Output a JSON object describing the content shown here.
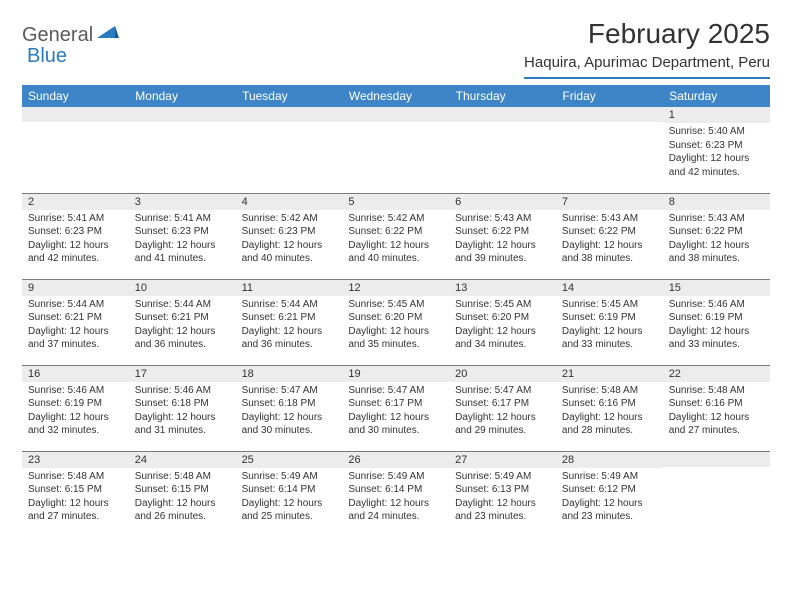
{
  "brand": {
    "part1": "General",
    "part2": "Blue"
  },
  "title": "February 2025",
  "location": "Haquira, Apurimac Department, Peru",
  "colors": {
    "header_bg": "#3d85c6",
    "accent": "#2b7bbf",
    "daynum_bg": "#ececec",
    "border": "#7a7a7a",
    "text": "#333333",
    "logo_gray": "#5a5a5a"
  },
  "weekdays": [
    "Sunday",
    "Monday",
    "Tuesday",
    "Wednesday",
    "Thursday",
    "Friday",
    "Saturday"
  ],
  "weeks": [
    [
      {
        "n": "",
        "sr": "",
        "ss": "",
        "dl": ""
      },
      {
        "n": "",
        "sr": "",
        "ss": "",
        "dl": ""
      },
      {
        "n": "",
        "sr": "",
        "ss": "",
        "dl": ""
      },
      {
        "n": "",
        "sr": "",
        "ss": "",
        "dl": ""
      },
      {
        "n": "",
        "sr": "",
        "ss": "",
        "dl": ""
      },
      {
        "n": "",
        "sr": "",
        "ss": "",
        "dl": ""
      },
      {
        "n": "1",
        "sr": "Sunrise: 5:40 AM",
        "ss": "Sunset: 6:23 PM",
        "dl": "Daylight: 12 hours and 42 minutes."
      }
    ],
    [
      {
        "n": "2",
        "sr": "Sunrise: 5:41 AM",
        "ss": "Sunset: 6:23 PM",
        "dl": "Daylight: 12 hours and 42 minutes."
      },
      {
        "n": "3",
        "sr": "Sunrise: 5:41 AM",
        "ss": "Sunset: 6:23 PM",
        "dl": "Daylight: 12 hours and 41 minutes."
      },
      {
        "n": "4",
        "sr": "Sunrise: 5:42 AM",
        "ss": "Sunset: 6:23 PM",
        "dl": "Daylight: 12 hours and 40 minutes."
      },
      {
        "n": "5",
        "sr": "Sunrise: 5:42 AM",
        "ss": "Sunset: 6:22 PM",
        "dl": "Daylight: 12 hours and 40 minutes."
      },
      {
        "n": "6",
        "sr": "Sunrise: 5:43 AM",
        "ss": "Sunset: 6:22 PM",
        "dl": "Daylight: 12 hours and 39 minutes."
      },
      {
        "n": "7",
        "sr": "Sunrise: 5:43 AM",
        "ss": "Sunset: 6:22 PM",
        "dl": "Daylight: 12 hours and 38 minutes."
      },
      {
        "n": "8",
        "sr": "Sunrise: 5:43 AM",
        "ss": "Sunset: 6:22 PM",
        "dl": "Daylight: 12 hours and 38 minutes."
      }
    ],
    [
      {
        "n": "9",
        "sr": "Sunrise: 5:44 AM",
        "ss": "Sunset: 6:21 PM",
        "dl": "Daylight: 12 hours and 37 minutes."
      },
      {
        "n": "10",
        "sr": "Sunrise: 5:44 AM",
        "ss": "Sunset: 6:21 PM",
        "dl": "Daylight: 12 hours and 36 minutes."
      },
      {
        "n": "11",
        "sr": "Sunrise: 5:44 AM",
        "ss": "Sunset: 6:21 PM",
        "dl": "Daylight: 12 hours and 36 minutes."
      },
      {
        "n": "12",
        "sr": "Sunrise: 5:45 AM",
        "ss": "Sunset: 6:20 PM",
        "dl": "Daylight: 12 hours and 35 minutes."
      },
      {
        "n": "13",
        "sr": "Sunrise: 5:45 AM",
        "ss": "Sunset: 6:20 PM",
        "dl": "Daylight: 12 hours and 34 minutes."
      },
      {
        "n": "14",
        "sr": "Sunrise: 5:45 AM",
        "ss": "Sunset: 6:19 PM",
        "dl": "Daylight: 12 hours and 33 minutes."
      },
      {
        "n": "15",
        "sr": "Sunrise: 5:46 AM",
        "ss": "Sunset: 6:19 PM",
        "dl": "Daylight: 12 hours and 33 minutes."
      }
    ],
    [
      {
        "n": "16",
        "sr": "Sunrise: 5:46 AM",
        "ss": "Sunset: 6:19 PM",
        "dl": "Daylight: 12 hours and 32 minutes."
      },
      {
        "n": "17",
        "sr": "Sunrise: 5:46 AM",
        "ss": "Sunset: 6:18 PM",
        "dl": "Daylight: 12 hours and 31 minutes."
      },
      {
        "n": "18",
        "sr": "Sunrise: 5:47 AM",
        "ss": "Sunset: 6:18 PM",
        "dl": "Daylight: 12 hours and 30 minutes."
      },
      {
        "n": "19",
        "sr": "Sunrise: 5:47 AM",
        "ss": "Sunset: 6:17 PM",
        "dl": "Daylight: 12 hours and 30 minutes."
      },
      {
        "n": "20",
        "sr": "Sunrise: 5:47 AM",
        "ss": "Sunset: 6:17 PM",
        "dl": "Daylight: 12 hours and 29 minutes."
      },
      {
        "n": "21",
        "sr": "Sunrise: 5:48 AM",
        "ss": "Sunset: 6:16 PM",
        "dl": "Daylight: 12 hours and 28 minutes."
      },
      {
        "n": "22",
        "sr": "Sunrise: 5:48 AM",
        "ss": "Sunset: 6:16 PM",
        "dl": "Daylight: 12 hours and 27 minutes."
      }
    ],
    [
      {
        "n": "23",
        "sr": "Sunrise: 5:48 AM",
        "ss": "Sunset: 6:15 PM",
        "dl": "Daylight: 12 hours and 27 minutes."
      },
      {
        "n": "24",
        "sr": "Sunrise: 5:48 AM",
        "ss": "Sunset: 6:15 PM",
        "dl": "Daylight: 12 hours and 26 minutes."
      },
      {
        "n": "25",
        "sr": "Sunrise: 5:49 AM",
        "ss": "Sunset: 6:14 PM",
        "dl": "Daylight: 12 hours and 25 minutes."
      },
      {
        "n": "26",
        "sr": "Sunrise: 5:49 AM",
        "ss": "Sunset: 6:14 PM",
        "dl": "Daylight: 12 hours and 24 minutes."
      },
      {
        "n": "27",
        "sr": "Sunrise: 5:49 AM",
        "ss": "Sunset: 6:13 PM",
        "dl": "Daylight: 12 hours and 23 minutes."
      },
      {
        "n": "28",
        "sr": "Sunrise: 5:49 AM",
        "ss": "Sunset: 6:12 PM",
        "dl": "Daylight: 12 hours and 23 minutes."
      },
      {
        "n": "",
        "sr": "",
        "ss": "",
        "dl": ""
      }
    ]
  ]
}
